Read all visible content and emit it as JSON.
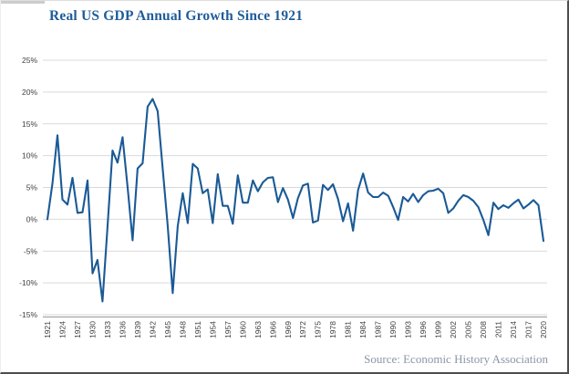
{
  "title": "Real US GDP Annual Growth Since 1921",
  "source": "Source: Economic History Association",
  "colors": {
    "title_text": "#1F5C99",
    "line": "#1A5A96",
    "gridline": "#D9D9D9",
    "axis_line": "#A6A6A6",
    "tick_text": "#404040",
    "source_text": "#8C96A6",
    "background": "#FFFFFF",
    "frame_shadow": "#4D4D4D"
  },
  "chart_data": {
    "type": "line",
    "title": "Real US GDP Annual Growth Since 1921",
    "xlabel": "",
    "ylabel": "",
    "xlim": [
      1921,
      2020
    ],
    "ylim": [
      -15,
      25
    ],
    "grid": true,
    "legend": "none",
    "y_tick_values": [
      25,
      20,
      15,
      10,
      5,
      0,
      -5,
      -10,
      -15
    ],
    "y_tick_labels": [
      "25%",
      "20%",
      "15%",
      "10%",
      "5%",
      "0%",
      "-5%",
      "-10%",
      "-15%"
    ],
    "x_tick_labels": [
      "1921",
      "1924",
      "1927",
      "1930",
      "1933",
      "1936",
      "1939",
      "1942",
      "1945",
      "1948",
      "1951",
      "1954",
      "1957",
      "1960",
      "1963",
      "1966",
      "1969",
      "1972",
      "1975",
      "1978",
      "1981",
      "1984",
      "1987",
      "1990",
      "1993",
      "1996",
      "1999",
      "2002",
      "2005",
      "2008",
      "2011",
      "2014",
      "2017",
      "2020"
    ],
    "series": [
      {
        "name": "Real US GDP annual growth (%)",
        "x_start": 1921,
        "x_step": 1,
        "years": [
          1921,
          1922,
          1923,
          1924,
          1925,
          1926,
          1927,
          1928,
          1929,
          1930,
          1931,
          1932,
          1933,
          1934,
          1935,
          1936,
          1937,
          1938,
          1939,
          1940,
          1941,
          1942,
          1943,
          1944,
          1945,
          1946,
          1947,
          1948,
          1949,
          1950,
          1951,
          1952,
          1953,
          1954,
          1955,
          1956,
          1957,
          1958,
          1959,
          1960,
          1961,
          1962,
          1963,
          1964,
          1965,
          1966,
          1967,
          1968,
          1969,
          1970,
          1971,
          1972,
          1973,
          1974,
          1975,
          1976,
          1977,
          1978,
          1979,
          1980,
          1981,
          1982,
          1983,
          1984,
          1985,
          1986,
          1987,
          1988,
          1989,
          1990,
          1991,
          1992,
          1993,
          1994,
          1995,
          1996,
          1997,
          1998,
          1999,
          2000,
          2001,
          2002,
          2003,
          2004,
          2005,
          2006,
          2007,
          2008,
          2009,
          2010,
          2011,
          2012,
          2013,
          2014,
          2015,
          2016,
          2017,
          2018,
          2019,
          2020
        ],
        "values": [
          0.0,
          5.6,
          13.2,
          3.1,
          2.3,
          6.5,
          1.0,
          1.1,
          6.1,
          -8.5,
          -6.4,
          -12.9,
          -1.2,
          10.8,
          8.9,
          12.9,
          5.1,
          -3.3,
          8.0,
          8.8,
          17.7,
          18.9,
          17.0,
          8.0,
          -1.0,
          -11.6,
          -1.1,
          4.1,
          -0.6,
          8.7,
          8.0,
          4.1,
          4.7,
          -0.6,
          7.1,
          2.1,
          2.1,
          -0.7,
          6.9,
          2.6,
          2.6,
          6.1,
          4.4,
          5.8,
          6.5,
          6.6,
          2.7,
          4.9,
          3.1,
          0.2,
          3.3,
          5.3,
          5.6,
          -0.5,
          -0.2,
          5.4,
          4.6,
          5.5,
          3.2,
          -0.3,
          2.5,
          -1.8,
          4.6,
          7.2,
          4.2,
          3.5,
          3.5,
          4.2,
          3.7,
          1.9,
          -0.1,
          3.5,
          2.8,
          4.0,
          2.7,
          3.8,
          4.4,
          4.5,
          4.8,
          4.1,
          1.0,
          1.7,
          2.9,
          3.8,
          3.5,
          2.9,
          1.9,
          -0.1,
          -2.5,
          2.6,
          1.6,
          2.2,
          1.8,
          2.5,
          3.1,
          1.7,
          2.3,
          3.0,
          2.2,
          -3.4
        ]
      }
    ],
    "source": "Source: Economic History Association"
  }
}
